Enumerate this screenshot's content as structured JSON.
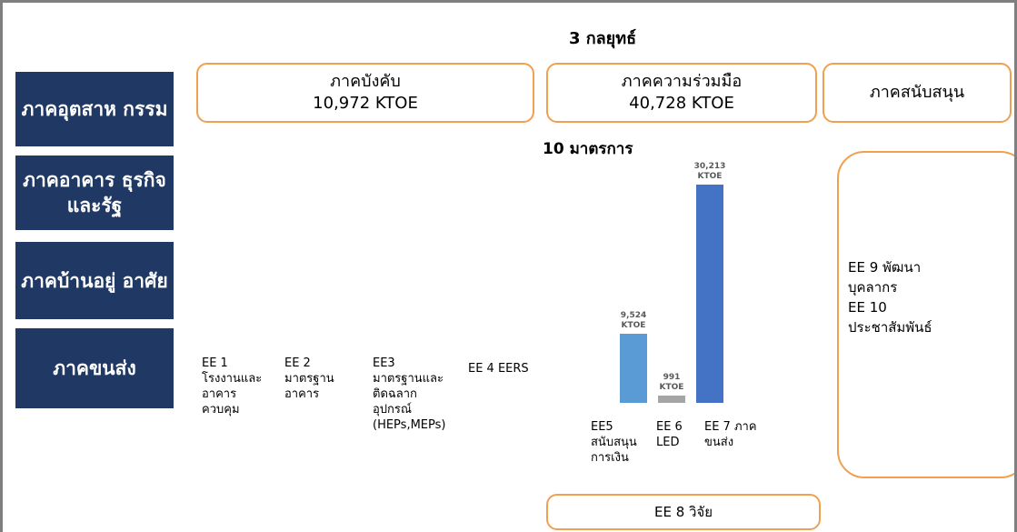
{
  "title": "3 กลยุทธ์",
  "sectors": [
    "ภาคอุตสาห\nกรรม",
    "ภาคอาคาร\nธุรกิจและรัฐ",
    "ภาคบ้านอยู่\nอาศัย",
    "ภาคขนส่ง"
  ],
  "strategies": [
    {
      "name": "ภาคบังคับ",
      "amount": "10,972 KTOE"
    },
    {
      "name": "ภาคความร่วมมือ",
      "amount": "40,728 KTOE"
    },
    {
      "name": "ภาคสนับสนุน"
    }
  ],
  "measures_title": "10 มาตรการ",
  "measures": [
    "EE 1\nโรงงานและ\nอาคาร\nควบคุม",
    "EE 2\nมาตรฐาน\nอาคาร",
    "EE3\nมาตรฐานและ\nติดฉลาก\nอุปกรณ์\n(HEPs,MEPs)",
    "EE 4 EERS"
  ],
  "support_measures": "EE 9 พัฒนา\nบุคลากร\nEE 10\nประชาสัมพันธ์",
  "research": "EE 8 วิจัย",
  "chart_data": {
    "type": "bar",
    "categories": [
      "EE5\nสนับสนุน\nการเงิน",
      "EE 6\nLED",
      "EE 7 ภาค\nขนส่ง"
    ],
    "values": [
      9524,
      991,
      30213
    ],
    "value_labels": [
      "9,524\nKTOE",
      "991\nKTOE",
      "30,213\nKTOE"
    ],
    "colors": [
      "#5b9bd5",
      "#a5a5a5",
      "#4472c4"
    ]
  }
}
